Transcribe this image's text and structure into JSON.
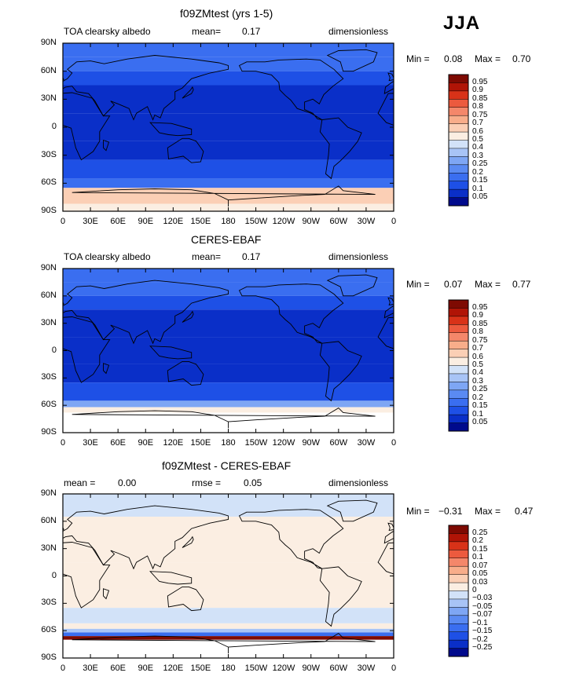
{
  "season": "JJA",
  "x_ticks": [
    "0",
    "30E",
    "60E",
    "90E",
    "120E",
    "150E",
    "180",
    "150W",
    "120W",
    "90W",
    "60W",
    "30W",
    "0"
  ],
  "y_ticks": [
    "90N",
    "60N",
    "30N",
    "0",
    "30S",
    "60S",
    "90S"
  ],
  "min_label": "Min =",
  "max_label": "Max =",
  "panels": [
    {
      "title": "f09ZMtest (yrs 1-5)",
      "left_text": "TOA clearsky albedo",
      "mid_label": "mean=",
      "mid_value": "0.17",
      "right_text": "dimensionless",
      "min": "0.08",
      "max": "0.70",
      "colorbar": [
        "0.95",
        "0.9",
        "0.85",
        "0.8",
        "0.75",
        "0.7",
        "0.6",
        "0.5",
        "0.4",
        "0.3",
        "0.25",
        "0.2",
        "0.15",
        "0.1",
        "0.05"
      ]
    },
    {
      "title": "CERES-EBAF",
      "left_text": "TOA clearsky albedo",
      "mid_label": "mean=",
      "mid_value": "0.17",
      "right_text": "dimensionless",
      "min": "0.07",
      "max": "0.77",
      "colorbar": [
        "0.95",
        "0.9",
        "0.85",
        "0.8",
        "0.75",
        "0.7",
        "0.6",
        "0.5",
        "0.4",
        "0.3",
        "0.25",
        "0.2",
        "0.15",
        "0.1",
        "0.05"
      ]
    },
    {
      "title": "f09ZMtest - CERES-EBAF",
      "left_label": "mean =",
      "left_value": "0.00",
      "mid_label": "rmse =",
      "mid_value": "0.05",
      "right_text": "dimensionless",
      "min": "−0.31",
      "max": "0.47",
      "colorbar": [
        "0.25",
        "0.2",
        "0.15",
        "0.1",
        "0.07",
        "0.05",
        "0.03",
        "0",
        "−0.03",
        "−0.05",
        "−0.07",
        "−0.1",
        "−0.15",
        "−0.2",
        "−0.25"
      ]
    }
  ],
  "chart_data": [
    {
      "type": "heatmap",
      "title": "f09ZMtest (yrs 1-5)",
      "variable": "TOA clearsky albedo",
      "units": "dimensionless",
      "mean": 0.17,
      "min": 0.08,
      "max": 0.7,
      "x_range": [
        0,
        360
      ],
      "y_range": [
        -90,
        90
      ],
      "levels": [
        0.05,
        0.1,
        0.15,
        0.2,
        0.25,
        0.3,
        0.4,
        0.5,
        0.6,
        0.7,
        0.75,
        0.8,
        0.85,
        0.9,
        0.95
      ],
      "colors": [
        "#000a8c",
        "#0a2fc8",
        "#1e50e6",
        "#3a6ef0",
        "#5a8af2",
        "#7ea6f4",
        "#a8c4f6",
        "#d2e2f8",
        "#fbeee2",
        "#fbcfb5",
        "#f8ad8a",
        "#f4876a",
        "#ec5a3e",
        "#d83218",
        "#b01406",
        "#7e0a02"
      ],
      "zonal_bands": [
        {
          "lat": [
            75,
            90
          ],
          "value": 0.18
        },
        {
          "lat": [
            60,
            75
          ],
          "value": 0.16
        },
        {
          "lat": [
            45,
            60
          ],
          "value": 0.13
        },
        {
          "lat": [
            15,
            45
          ],
          "value": 0.09
        },
        {
          "lat": [
            -15,
            15
          ],
          "value": 0.07
        },
        {
          "lat": [
            -35,
            -15
          ],
          "value": 0.09
        },
        {
          "lat": [
            -55,
            -35
          ],
          "value": 0.12
        },
        {
          "lat": [
            -65,
            -55
          ],
          "value": 0.16
        },
        {
          "lat": [
            -82,
            -65
          ],
          "value": 0.68
        },
        {
          "lat": [
            -90,
            -82
          ],
          "value": 0.55
        }
      ]
    },
    {
      "type": "heatmap",
      "title": "CERES-EBAF",
      "variable": "TOA clearsky albedo",
      "units": "dimensionless",
      "mean": 0.17,
      "min": 0.07,
      "max": 0.77,
      "x_range": [
        0,
        360
      ],
      "y_range": [
        -90,
        90
      ],
      "levels": [
        0.05,
        0.1,
        0.15,
        0.2,
        0.25,
        0.3,
        0.4,
        0.5,
        0.6,
        0.7,
        0.75,
        0.8,
        0.85,
        0.9,
        0.95
      ],
      "zonal_bands": [
        {
          "lat": [
            75,
            90
          ],
          "value": 0.17
        },
        {
          "lat": [
            60,
            75
          ],
          "value": 0.15
        },
        {
          "lat": [
            45,
            60
          ],
          "value": 0.12
        },
        {
          "lat": [
            15,
            45
          ],
          "value": 0.09
        },
        {
          "lat": [
            -15,
            15
          ],
          "value": 0.07
        },
        {
          "lat": [
            -35,
            -15
          ],
          "value": 0.08
        },
        {
          "lat": [
            -55,
            -35
          ],
          "value": 0.11
        },
        {
          "lat": [
            -62,
            -55
          ],
          "value": 0.25
        },
        {
          "lat": [
            -68,
            -62
          ],
          "value": 0.55
        },
        {
          "lat": [
            -90,
            -68
          ],
          "value": null
        }
      ]
    },
    {
      "type": "heatmap",
      "title": "f09ZMtest - CERES-EBAF",
      "units": "dimensionless",
      "mean": 0.0,
      "rmse": 0.05,
      "min": -0.31,
      "max": 0.47,
      "x_range": [
        0,
        360
      ],
      "y_range": [
        -90,
        90
      ],
      "levels": [
        -0.25,
        -0.2,
        -0.15,
        -0.1,
        -0.07,
        -0.05,
        -0.03,
        0,
        0.03,
        0.05,
        0.07,
        0.1,
        0.15,
        0.2,
        0.25
      ],
      "colors": [
        "#000a8c",
        "#0a2fc8",
        "#1e50e6",
        "#3a6ef0",
        "#5a8af2",
        "#7ea6f4",
        "#a8c4f6",
        "#d2e2f8",
        "#fbeee2",
        "#fbcfb5",
        "#f8ad8a",
        "#f4876a",
        "#ec5a3e",
        "#d83218",
        "#b01406",
        "#7e0a02"
      ],
      "zonal_bands": [
        {
          "lat": [
            65,
            90
          ],
          "value": -0.02
        },
        {
          "lat": [
            15,
            65
          ],
          "value": 0.01
        },
        {
          "lat": [
            -15,
            15
          ],
          "value": 0.01
        },
        {
          "lat": [
            -35,
            -15
          ],
          "value": 0.02
        },
        {
          "lat": [
            -52,
            -35
          ],
          "value": -0.02
        },
        {
          "lat": [
            -58,
            -52
          ],
          "value": 0.02
        },
        {
          "lat": [
            -62,
            -58
          ],
          "value": -0.05
        },
        {
          "lat": [
            -66,
            -62
          ],
          "value": -0.15
        },
        {
          "lat": [
            -70,
            -66
          ],
          "value": 0.3
        },
        {
          "lat": [
            -90,
            -70
          ],
          "value": null
        }
      ]
    }
  ]
}
